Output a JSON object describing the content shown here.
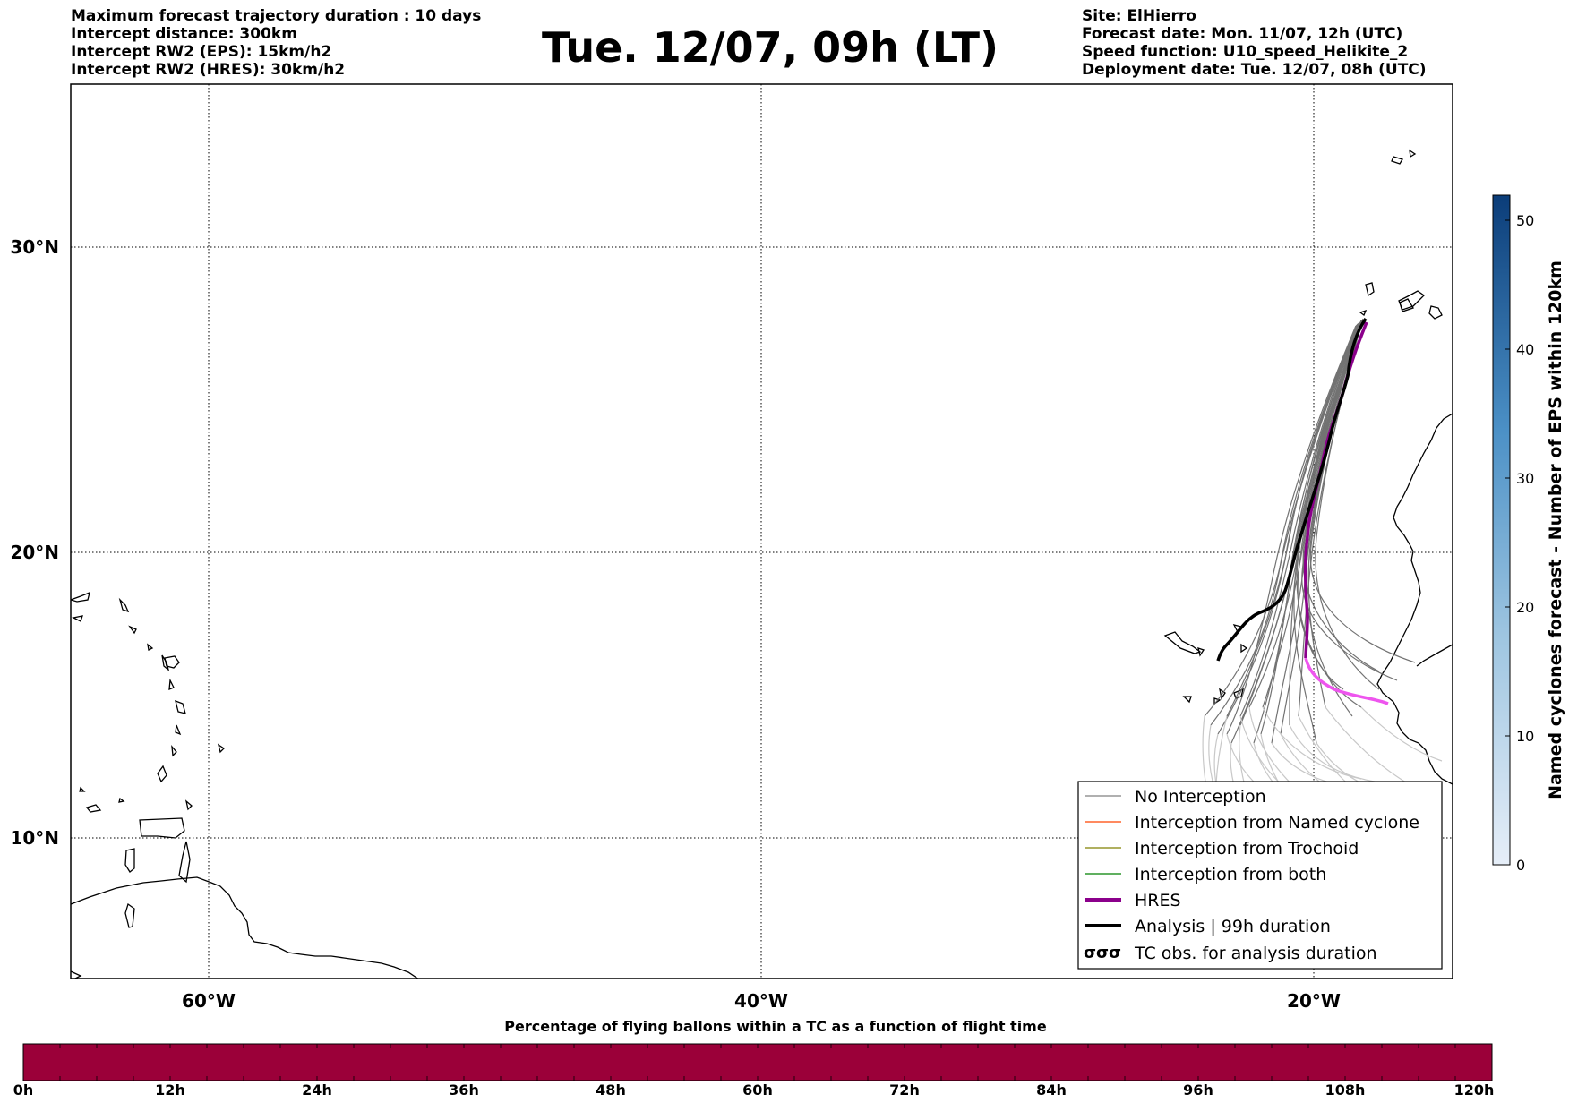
{
  "header": {
    "left_lines": [
      "Maximum forecast trajectory duration : 10 days",
      "Intercept distance: 300km",
      "Intercept RW2 (EPS):  15km/h2",
      "Intercept RW2 (HRES): 30km/h2"
    ],
    "title": "Tue. 12/07, 09h (LT)",
    "right_lines": [
      "Site: ElHierro",
      "Forecast date: Mon. 11/07, 12h (UTC)",
      "Speed function: U10_speed_Helikite_2",
      "Deployment date: Tue. 12/07, 08h (UTC)"
    ]
  },
  "map": {
    "lat_labels": [
      "30°N",
      "20°N",
      "10°N"
    ],
    "lon_labels": [
      "60°W",
      "40°W",
      "20°W"
    ],
    "extent": {
      "lon_min": -65,
      "lon_max": -15,
      "lat_min": 5.3,
      "lat_max": 34.6
    }
  },
  "legend": {
    "items": [
      {
        "label": "No Interception",
        "color": "#808080",
        "style": "thin"
      },
      {
        "label": "Interception from Named cyclone",
        "color": "#ff4500",
        "style": "thin"
      },
      {
        "label": "Interception from Trochoid",
        "color": "#808000",
        "style": "thin"
      },
      {
        "label": "Interception from both",
        "color": "#008000",
        "style": "thin"
      },
      {
        "label": "HRES",
        "color": "#8b008b",
        "style": "thick"
      },
      {
        "label": "Analysis | 99h duration",
        "color": "#000000",
        "style": "thick"
      },
      {
        "label": "TC obs. for analysis duration",
        "color": "#000000",
        "style": "symbol",
        "symbol": "σσσ"
      }
    ]
  },
  "colorbar": {
    "label": "Named cyclones forecast - Number of EPS within 120km",
    "ticks": [
      "0",
      "10",
      "20",
      "30",
      "40",
      "50"
    ],
    "min": 0,
    "max": 52,
    "color_low": "#e6eef8",
    "color_high": "#0b3d79"
  },
  "flight_bar": {
    "label": "Percentage of flying ballons within a TC as a function of flight time",
    "ticks": [
      "0h",
      "12h",
      "24h",
      "36h",
      "48h",
      "60h",
      "72h",
      "84h",
      "96h",
      "108h",
      "120h"
    ],
    "color": "#9b0039"
  }
}
